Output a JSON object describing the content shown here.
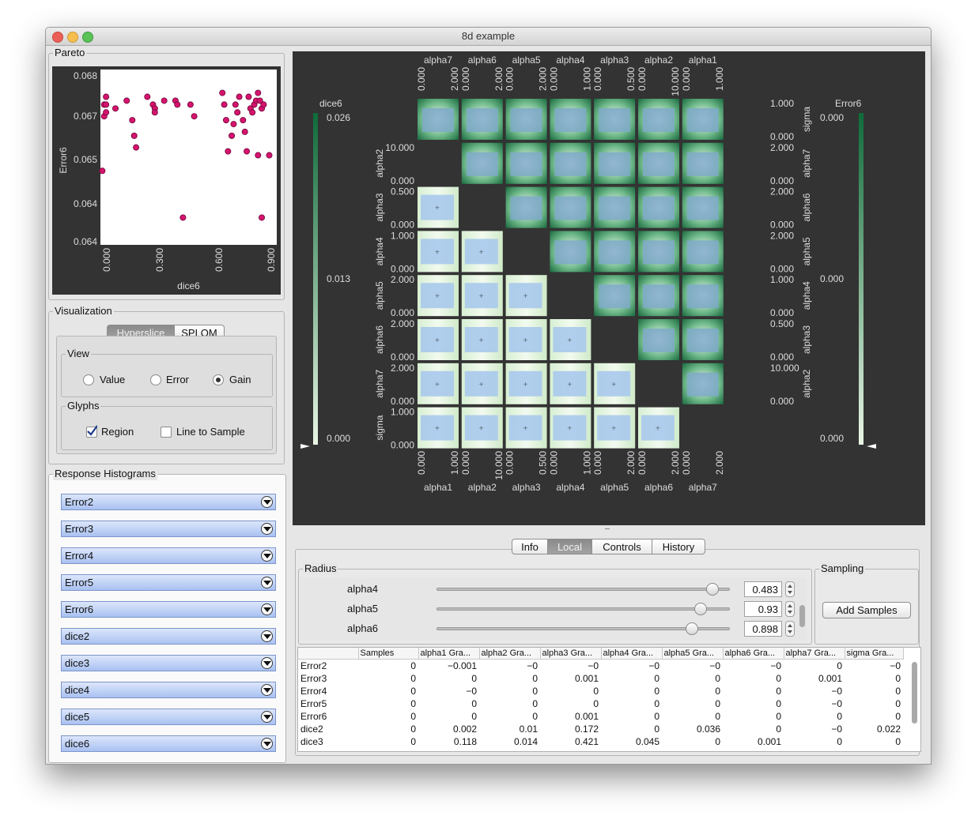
{
  "window": {
    "title": "8d example"
  },
  "pareto": {
    "title": "Pareto",
    "xlabel": "dice6",
    "ylabel": "Error6",
    "yticks": [
      "0.068",
      "0.067",
      "0.065",
      "0.064",
      "0.064"
    ],
    "xticks": [
      "0.000",
      "0.300",
      "0.600",
      "0.900"
    ],
    "point_color": "#d6136e"
  },
  "chart_data": {
    "type": "scatter",
    "xlabel": "dice6",
    "ylabel": "Error6",
    "xlim": [
      -0.02,
      0.92
    ],
    "ylim": [
      0.0636,
      0.0681
    ],
    "points": [
      [
        -0.01,
        0.0655
      ],
      [
        0.0,
        0.0672
      ],
      [
        0.01,
        0.0674
      ],
      [
        0.01,
        0.0672
      ],
      [
        0.0,
        0.0669
      ],
      [
        0.01,
        0.067
      ],
      [
        0.06,
        0.0671
      ],
      [
        0.12,
        0.0673
      ],
      [
        0.15,
        0.0668
      ],
      [
        0.16,
        0.0664
      ],
      [
        0.17,
        0.0661
      ],
      [
        0.23,
        0.0674
      ],
      [
        0.26,
        0.0672
      ],
      [
        0.27,
        0.0671
      ],
      [
        0.27,
        0.067
      ],
      [
        0.32,
        0.0673
      ],
      [
        0.38,
        0.0673
      ],
      [
        0.39,
        0.0672
      ],
      [
        0.42,
        0.0643
      ],
      [
        0.46,
        0.0672
      ],
      [
        0.48,
        0.0669
      ],
      [
        0.63,
        0.0675
      ],
      [
        0.64,
        0.0672
      ],
      [
        0.65,
        0.0668
      ],
      [
        0.66,
        0.066
      ],
      [
        0.68,
        0.0664
      ],
      [
        0.69,
        0.0667
      ],
      [
        0.7,
        0.0672
      ],
      [
        0.71,
        0.067
      ],
      [
        0.72,
        0.0674
      ],
      [
        0.74,
        0.0668
      ],
      [
        0.75,
        0.0665
      ],
      [
        0.76,
        0.066
      ],
      [
        0.77,
        0.0674
      ],
      [
        0.78,
        0.0671
      ],
      [
        0.79,
        0.067
      ],
      [
        0.8,
        0.0672
      ],
      [
        0.81,
        0.0673
      ],
      [
        0.82,
        0.0675
      ],
      [
        0.83,
        0.0673
      ],
      [
        0.84,
        0.0671
      ],
      [
        0.85,
        0.0672
      ],
      [
        0.82,
        0.0659
      ],
      [
        0.84,
        0.0643
      ],
      [
        0.88,
        0.0659
      ]
    ]
  },
  "visualization": {
    "title": "Visualization",
    "modes": [
      "Hyperslice",
      "SPLOM"
    ],
    "active_mode": "Hyperslice",
    "view": {
      "title": "View",
      "options": [
        "Value",
        "Error",
        "Gain"
      ],
      "selected": "Gain"
    },
    "glyphs": {
      "title": "Glyphs",
      "region": "Region",
      "line_to_sample": "Line to Sample"
    }
  },
  "histograms": {
    "title": "Response Histograms",
    "items": [
      "Error2",
      "Error3",
      "Error4",
      "Error5",
      "Error6",
      "dice2",
      "dice3",
      "dice4",
      "dice5",
      "dice6"
    ]
  },
  "hyperslice": {
    "top_params": [
      "alpha7",
      "alpha6",
      "alpha5",
      "alpha4",
      "alpha3",
      "alpha2",
      "alpha1"
    ],
    "bottom_params": [
      "alpha1",
      "alpha2",
      "alpha3",
      "alpha4",
      "alpha5",
      "alpha6",
      "alpha7"
    ],
    "left_params": [
      "alpha2",
      "alpha3",
      "alpha4",
      "alpha5",
      "alpha6",
      "alpha7",
      "sigma"
    ],
    "right_params": [
      "sigma",
      "alpha7",
      "alpha6",
      "alpha5",
      "alpha4",
      "alpha3",
      "alpha2"
    ],
    "top_ranges": [
      [
        "0.000",
        "2.000"
      ],
      [
        "0.000",
        "2.000"
      ],
      [
        "0.000",
        "2.000"
      ],
      [
        "0.000",
        "1.000"
      ],
      [
        "0.000",
        "0.500"
      ],
      [
        "0.000",
        "10.000"
      ],
      [
        "0.000",
        "1.000"
      ]
    ],
    "bottom_ranges": [
      [
        "0.000",
        "1.000"
      ],
      [
        "0.000",
        "10.000"
      ],
      [
        "0.000",
        "0.500"
      ],
      [
        "0.000",
        "1.000"
      ],
      [
        "0.000",
        "2.000"
      ],
      [
        "0.000",
        "2.000"
      ],
      [
        "0.000",
        "2.000"
      ]
    ],
    "left_ranges": [
      [
        "10.000",
        "0.000"
      ],
      [
        "0.500",
        "0.000"
      ],
      [
        "1.000",
        "0.000"
      ],
      [
        "2.000",
        "0.000"
      ],
      [
        "2.000",
        "0.000"
      ],
      [
        "2.000",
        "0.000"
      ],
      [
        "1.000",
        "0.000"
      ]
    ],
    "right_ranges": [
      [
        "1.000",
        "0.000"
      ],
      [
        "2.000",
        "0.000"
      ],
      [
        "2.000",
        "0.000"
      ],
      [
        "2.000",
        "0.000"
      ],
      [
        "1.000",
        "0.000"
      ],
      [
        "0.500",
        "0.000"
      ],
      [
        "10.000",
        "0.000"
      ]
    ],
    "left_scale": {
      "label": "dice6",
      "max": "0.026",
      "mid": "0.013",
      "min": "0.000"
    },
    "right_scale": {
      "label": "Error6",
      "max": "0.000",
      "mid": "0.000",
      "min": "0.000"
    },
    "scale_color": "#0f6b3a"
  },
  "bottom_tabs": {
    "items": [
      "Info",
      "Local",
      "Controls",
      "History"
    ],
    "active": "Local"
  },
  "radius": {
    "title": "Radius",
    "rows": [
      {
        "label": "alpha4",
        "value": "0.483",
        "pos": 0.94
      },
      {
        "label": "alpha5",
        "value": "0.93",
        "pos": 0.9
      },
      {
        "label": "alpha6",
        "value": "0.898",
        "pos": 0.87
      }
    ]
  },
  "sampling": {
    "title": "Sampling",
    "button": "Add Samples"
  },
  "grad_table": {
    "headers": [
      "",
      "Samples",
      "alpha1 Gra...",
      "alpha2 Gra...",
      "alpha3 Gra...",
      "alpha4 Gra...",
      "alpha5 Gra...",
      "alpha6 Gra...",
      "alpha7 Gra...",
      "sigma Gra..."
    ],
    "rows": [
      [
        "Error2",
        "0",
        "-0.001",
        "-0",
        "-0",
        "-0",
        "-0",
        "-0",
        "0",
        "-0"
      ],
      [
        "Error3",
        "0",
        "0",
        "0",
        "0.001",
        "0",
        "0",
        "0",
        "0.001",
        "0"
      ],
      [
        "Error4",
        "0",
        "-0",
        "0",
        "0",
        "0",
        "0",
        "0",
        "-0",
        "0"
      ],
      [
        "Error5",
        "0",
        "0",
        "0",
        "0",
        "0",
        "0",
        "0",
        "-0",
        "0"
      ],
      [
        "Error6",
        "0",
        "0",
        "0",
        "0.001",
        "0",
        "0",
        "0",
        "0",
        "0"
      ],
      [
        "dice2",
        "0",
        "0.002",
        "0.01",
        "0.172",
        "0",
        "0.036",
        "0",
        "-0",
        "0.022"
      ],
      [
        "dice3",
        "0",
        "0.118",
        "0.014",
        "0.421",
        "0.045",
        "0",
        "0.001",
        "0",
        "0"
      ]
    ]
  }
}
